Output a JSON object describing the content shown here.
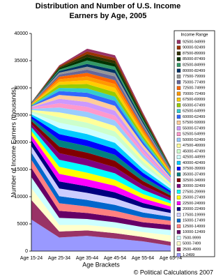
{
  "chart_data": {
    "type": "stacked_area",
    "title": "Distribution and Number of U.S. Income Earners by Age, 2005",
    "x_label": "Age Brackets",
    "y_label": "Number of Income Earners (thousands)",
    "legend_title": "Income Range",
    "annotation": "© Political Calculations 2007",
    "legend": "right",
    "categories": [
      "Age 15-24",
      "Age 25-34",
      "Age 35-44",
      "Age 45-54",
      "Age 55-64",
      "Age 65-74"
    ],
    "ylim": [
      0,
      40000
    ],
    "yticks": [
      0,
      5000,
      10000,
      15000,
      20000,
      25000,
      30000,
      35000,
      40000
    ],
    "series": [
      {
        "name": "1-2499",
        "color": "#9999ff",
        "values": [
          5800,
          2500,
          2800,
          2300,
          1800,
          1000
        ]
      },
      {
        "name": "2500-4999",
        "color": "#993366",
        "values": [
          3600,
          1100,
          1000,
          1000,
          800,
          700
        ]
      },
      {
        "name": "5000-7499",
        "color": "#ffffcc",
        "values": [
          2200,
          1200,
          1000,
          1000,
          900,
          1200
        ]
      },
      {
        "name": "7500-9999",
        "color": "#ccffff",
        "values": [
          2000,
          1300,
          1100,
          1000,
          900,
          1000
        ]
      },
      {
        "name": "10000-12499",
        "color": "#660066",
        "values": [
          1700,
          1300,
          1100,
          1000,
          900,
          900
        ]
      },
      {
        "name": "12500-14999",
        "color": "#ff8080",
        "values": [
          1500,
          1400,
          1200,
          1100,
          900,
          800
        ]
      },
      {
        "name": "15000-17499",
        "color": "#0066cc",
        "values": [
          1300,
          1300,
          1200,
          1100,
          900,
          700
        ]
      },
      {
        "name": "17500-19999",
        "color": "#ccccff",
        "values": [
          1200,
          1400,
          1300,
          1200,
          900,
          700
        ]
      },
      {
        "name": "20000-22499",
        "color": "#000080",
        "values": [
          1100,
          1300,
          1200,
          1100,
          850,
          600
        ]
      },
      {
        "name": "22500-24999",
        "color": "#ff00ff",
        "values": [
          900,
          1400,
          1300,
          1200,
          850,
          600
        ]
      },
      {
        "name": "25000-27499",
        "color": "#ffff00",
        "values": [
          800,
          1300,
          1200,
          1100,
          800,
          550
        ]
      },
      {
        "name": "27500-29999",
        "color": "#00ffff",
        "values": [
          700,
          1300,
          1300,
          1200,
          800,
          500
        ]
      },
      {
        "name": "30000-32499",
        "color": "#800080",
        "values": [
          600,
          1200,
          1200,
          1100,
          800,
          500
        ]
      },
      {
        "name": "32500-34999",
        "color": "#800000",
        "values": [
          550,
          1200,
          1200,
          1200,
          800,
          450
        ]
      },
      {
        "name": "35000-37499",
        "color": "#008080",
        "values": [
          450,
          1200,
          1200,
          1100,
          750,
          450
        ]
      },
      {
        "name": "37500-39999",
        "color": "#0000ff",
        "values": [
          400,
          1100,
          1100,
          1100,
          750,
          400
        ]
      },
      {
        "name": "40000-42499",
        "color": "#00ccff",
        "values": [
          350,
          1100,
          1100,
          1100,
          700,
          400
        ]
      },
      {
        "name": "42500-44999",
        "color": "#ccffff",
        "values": [
          300,
          1000,
          1100,
          1100,
          700,
          350
        ]
      },
      {
        "name": "45000-47499",
        "color": "#ccffcc",
        "values": [
          250,
          1000,
          1000,
          1000,
          700,
          350
        ]
      },
      {
        "name": "47500-49999",
        "color": "#ffff99",
        "values": [
          230,
          900,
          1000,
          1000,
          650,
          300
        ]
      },
      {
        "name": "50000-52499",
        "color": "#99ccff",
        "values": [
          200,
          900,
          1000,
          1000,
          650,
          300
        ]
      },
      {
        "name": "52500-54999",
        "color": "#ff99cc",
        "values": [
          170,
          800,
          900,
          900,
          600,
          280
        ]
      },
      {
        "name": "55000-57499",
        "color": "#cc99ff",
        "values": [
          150,
          800,
          900,
          900,
          600,
          260
        ]
      },
      {
        "name": "57500-59999",
        "color": "#ffcc99",
        "values": [
          130,
          700,
          900,
          900,
          600,
          240
        ]
      },
      {
        "name": "60000-62499",
        "color": "#3366ff",
        "values": [
          110,
          700,
          800,
          900,
          550,
          220
        ]
      },
      {
        "name": "62500-64999",
        "color": "#33cccc",
        "values": [
          100,
          600,
          800,
          800,
          550,
          200
        ]
      },
      {
        "name": "65000-67499",
        "color": "#99cc00",
        "values": [
          90,
          600,
          800,
          800,
          500,
          190
        ]
      },
      {
        "name": "67500-69999",
        "color": "#ffcc00",
        "values": [
          80,
          500,
          700,
          800,
          500,
          180
        ]
      },
      {
        "name": "70000-72499",
        "color": "#ff9900",
        "values": [
          70,
          500,
          700,
          700,
          500,
          170
        ]
      },
      {
        "name": "72500-74999",
        "color": "#ff6600",
        "values": [
          60,
          450,
          650,
          700,
          450,
          160
        ]
      },
      {
        "name": "75000-77499",
        "color": "#666699",
        "values": [
          50,
          400,
          600,
          700,
          450,
          150
        ]
      },
      {
        "name": "77500-79999",
        "color": "#969696",
        "values": [
          45,
          350,
          550,
          600,
          400,
          140
        ]
      },
      {
        "name": "80000-82499",
        "color": "#003366",
        "values": [
          40,
          300,
          500,
          600,
          400,
          130
        ]
      },
      {
        "name": "82500-84999",
        "color": "#339966",
        "values": [
          35,
          250,
          650,
          600,
          350,
          120
        ]
      },
      {
        "name": "85000-87499",
        "color": "#003300",
        "values": [
          30,
          250,
          600,
          550,
          350,
          110
        ]
      },
      {
        "name": "87500-89999",
        "color": "#333300",
        "values": [
          25,
          200,
          550,
          550,
          300,
          100
        ]
      },
      {
        "name": "90000-92499",
        "color": "#993300",
        "values": [
          20,
          200,
          500,
          500,
          300,
          90
        ]
      },
      {
        "name": "92500-94999",
        "color": "#993366",
        "values": [
          15,
          150,
          500,
          500,
          300,
          80
        ]
      }
    ]
  }
}
